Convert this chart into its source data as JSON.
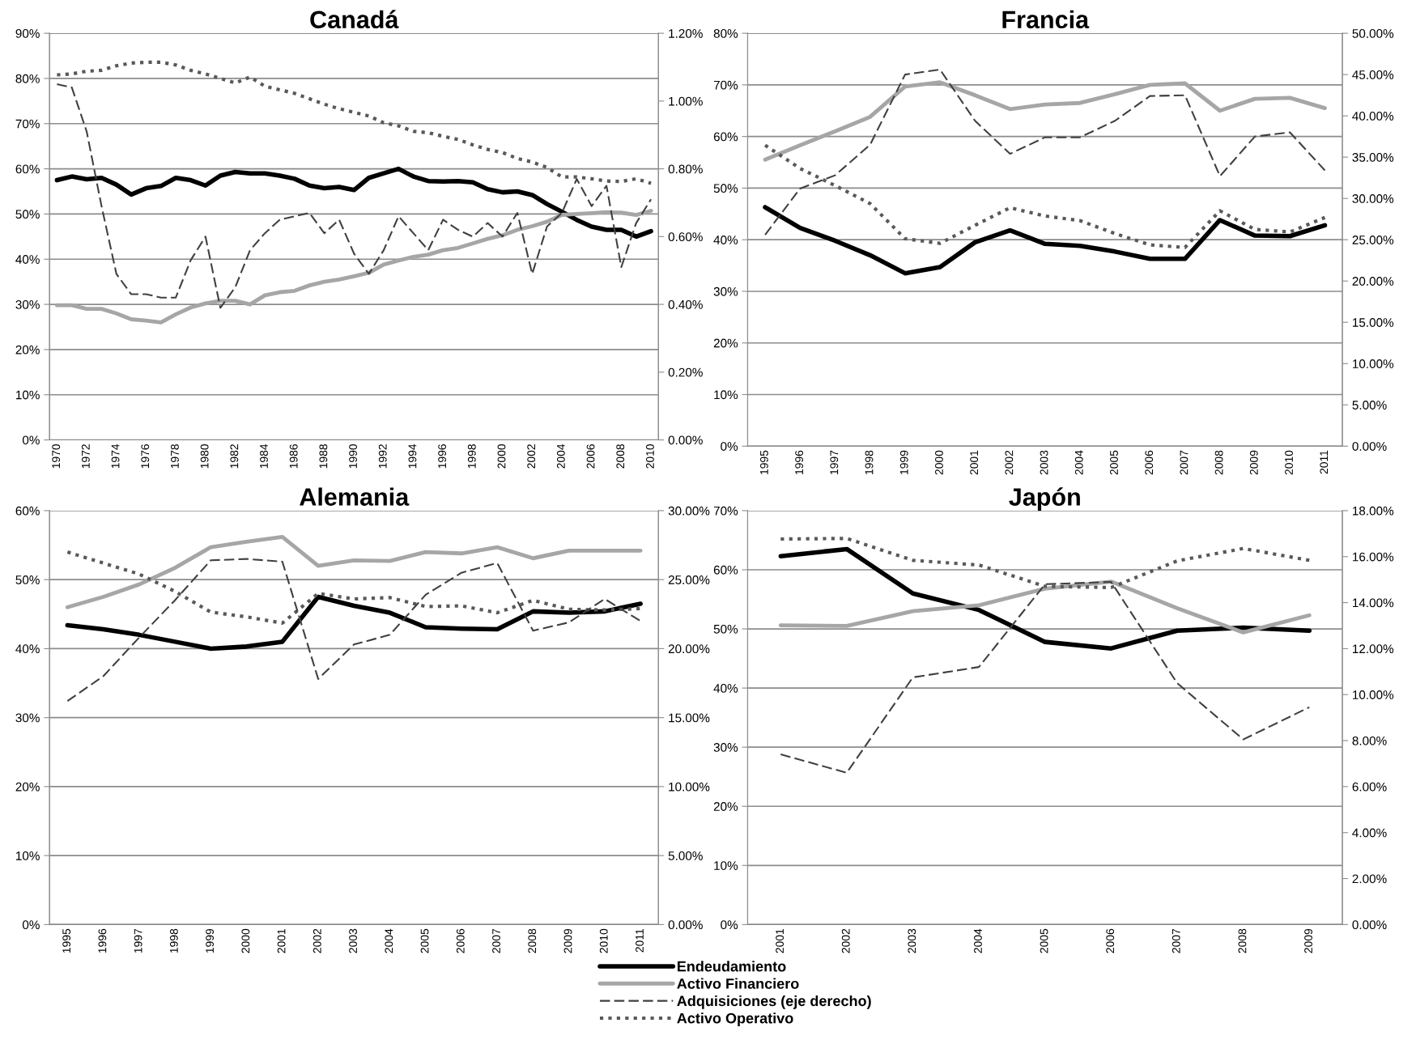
{
  "chart_data": [
    {
      "type": "line",
      "title": "Canadá",
      "categories": [
        "1970",
        null,
        "1972",
        null,
        "1974",
        null,
        "1976",
        null,
        "1978",
        null,
        "1980",
        null,
        "1982",
        null,
        "1984",
        null,
        "1986",
        null,
        "1988",
        null,
        "1990",
        null,
        "1992",
        null,
        "1994",
        null,
        "1996",
        null,
        "1998",
        null,
        "2000",
        null,
        "2002",
        null,
        "2004",
        null,
        "2006",
        null,
        "2008",
        null,
        "2010"
      ],
      "series": [
        {
          "color": "#000000",
          "line_style": "solid",
          "values": [
            57.5,
            58.3,
            57.7,
            58,
            56.5,
            54.3,
            55.7,
            56.2,
            58,
            57.5,
            56.3,
            58.5,
            59.3,
            59,
            59,
            58.5,
            57.8,
            56.3,
            55.7,
            56,
            55.3,
            58,
            59,
            60,
            58.3,
            57.3,
            57.2,
            57.3,
            57,
            55.5,
            54.8,
            55,
            54.2,
            52.2,
            50.5,
            48.7,
            47.2,
            46.5,
            46.5,
            45,
            46.2
          ]
        },
        {
          "color": "#a6a6a6",
          "line_style": "solid",
          "values": [
            29.8,
            29.8,
            29,
            29,
            28,
            26.7,
            26.4,
            26,
            27.8,
            29.3,
            30.2,
            30.8,
            30.8,
            30,
            32,
            32.7,
            33,
            34.2,
            35,
            35.5,
            36.2,
            37,
            38.8,
            39.7,
            40.5,
            41,
            42,
            42.5,
            43.5,
            44.5,
            45.3,
            46.5,
            47.3,
            48.3,
            49.8,
            50,
            50.2,
            50.4,
            50.3,
            49.8,
            50.7
          ]
        },
        {
          "color": "#404040",
          "line_style": "dashed",
          "axis": "y2",
          "values": [
            1.05,
            1.04,
            0.91,
            0.69,
            0.49,
            0.43,
            0.43,
            0.42,
            0.42,
            0.53,
            0.6,
            0.39,
            0.45,
            0.56,
            0.61,
            0.65,
            0.66,
            0.67,
            0.61,
            0.65,
            0.55,
            0.49,
            0.56,
            0.66,
            0.61,
            0.56,
            0.65,
            0.62,
            0.6,
            0.64,
            0.6,
            0.67,
            0.49,
            0.63,
            0.67,
            0.77,
            0.69,
            0.75,
            0.51,
            0.64,
            0.71
          ]
        },
        {
          "color": "#595959",
          "line_style": "dotted",
          "values": [
            80.8,
            81,
            81.6,
            81.8,
            82.8,
            83.4,
            83.6,
            83.6,
            83,
            81.8,
            81,
            80,
            79,
            80.3,
            78.3,
            77.5,
            76.7,
            75.5,
            74.3,
            73.3,
            72.5,
            71.7,
            70.2,
            69.5,
            68.3,
            68,
            67.2,
            66.5,
            65.3,
            64.3,
            63.6,
            62.3,
            61.5,
            60.3,
            58.2,
            58.2,
            57.8,
            57.3,
            57.2,
            57.8,
            56.8
          ]
        }
      ],
      "ylim": [
        0,
        90
      ],
      "yticks": [
        {
          "value": 0,
          "label": "0%"
        },
        {
          "value": 10,
          "label": "10%"
        },
        {
          "value": 20,
          "label": "20%"
        },
        {
          "value": 30,
          "label": "30%"
        },
        {
          "value": 40,
          "label": "40%"
        },
        {
          "value": 50,
          "label": "50%"
        },
        {
          "value": 60,
          "label": "60%"
        },
        {
          "value": 70,
          "label": "70%"
        },
        {
          "value": 80,
          "label": "80%"
        },
        {
          "value": 90,
          "label": "90%"
        }
      ],
      "y2lim": [
        0,
        1.2
      ],
      "y2ticks": [
        {
          "value": 0,
          "label": "0.00%"
        },
        {
          "value": 0.2,
          "label": "0.20%"
        },
        {
          "value": 0.4,
          "label": "0.40%"
        },
        {
          "value": 0.6,
          "label": "0.60%"
        },
        {
          "value": 0.8,
          "label": "0.80%"
        },
        {
          "value": 1.0,
          "label": "1.00%"
        },
        {
          "value": 1.2,
          "label": "1.20%"
        }
      ],
      "grid": "y"
    },
    {
      "type": "line",
      "title": "Francia",
      "categories": [
        "1995",
        "1996",
        "1997",
        "1998",
        "1999",
        "2000",
        "2001",
        "2002",
        "2003",
        "2004",
        "2005",
        "2006",
        "2007",
        "2008",
        "2009",
        "2010",
        "2011"
      ],
      "series": [
        {
          "color": "#000000",
          "line_style": "solid",
          "values": [
            46.3,
            42.3,
            39.8,
            37,
            33.5,
            34.7,
            39.5,
            41.8,
            39.2,
            38.8,
            37.7,
            36.3,
            36.3,
            43.8,
            40.8,
            40.7,
            42.8
          ]
        },
        {
          "color": "#a6a6a6",
          "line_style": "solid",
          "values": [
            55.5,
            58.3,
            61,
            63.8,
            69.7,
            70.5,
            68,
            65.3,
            66.2,
            66.5,
            68.2,
            70,
            70.3,
            65,
            67.3,
            67.5,
            65.5
          ]
        },
        {
          "color": "#404040",
          "line_style": "dashed",
          "axis": "y2",
          "values": [
            25.6,
            31.2,
            32.8,
            36.5,
            45,
            45.6,
            39.4,
            35.4,
            37.4,
            37.4,
            39.4,
            42.4,
            42.5,
            32.7,
            37.5,
            38,
            33.4
          ]
        },
        {
          "color": "#595959",
          "line_style": "dotted",
          "values": [
            58.3,
            53.8,
            50.5,
            47,
            40.2,
            39.3,
            42.8,
            46.2,
            44.6,
            43.7,
            41.2,
            39,
            38.5,
            45.6,
            42,
            41.5,
            44.3
          ]
        }
      ],
      "ylim": [
        0,
        80
      ],
      "yticks": [
        {
          "value": 0,
          "label": "0%"
        },
        {
          "value": 10,
          "label": "10%"
        },
        {
          "value": 20,
          "label": "20%"
        },
        {
          "value": 30,
          "label": "30%"
        },
        {
          "value": 40,
          "label": "40%"
        },
        {
          "value": 50,
          "label": "50%"
        },
        {
          "value": 60,
          "label": "60%"
        },
        {
          "value": 70,
          "label": "70%"
        },
        {
          "value": 80,
          "label": "80%"
        }
      ],
      "y2lim": [
        0,
        50
      ],
      "y2ticks": [
        {
          "value": 0,
          "label": "0.00%"
        },
        {
          "value": 5,
          "label": "5.00%"
        },
        {
          "value": 10,
          "label": "10.00%"
        },
        {
          "value": 15,
          "label": "15.00%"
        },
        {
          "value": 20,
          "label": "20.00%"
        },
        {
          "value": 25,
          "label": "25.00%"
        },
        {
          "value": 30,
          "label": "30.00%"
        },
        {
          "value": 35,
          "label": "35.00%"
        },
        {
          "value": 40,
          "label": "40.00%"
        },
        {
          "value": 45,
          "label": "45.00%"
        },
        {
          "value": 50,
          "label": "50.00%"
        }
      ],
      "grid": "y"
    },
    {
      "type": "line",
      "title": "Alemania",
      "categories": [
        "1995",
        "1996",
        "1997",
        "1998",
        "1999",
        "2000",
        "2001",
        "2002",
        "2003",
        "2004",
        "2005",
        "2006",
        "2007",
        "2008",
        "2009",
        "2010",
        "2011"
      ],
      "series": [
        {
          "color": "#000000",
          "line_style": "solid",
          "values": [
            43.4,
            42.8,
            42,
            41,
            40,
            40.3,
            41,
            47.5,
            46.2,
            45.2,
            43.1,
            42.9,
            42.8,
            45.4,
            45.2,
            45.4,
            46.5
          ]
        },
        {
          "color": "#a6a6a6",
          "line_style": "solid",
          "values": [
            46,
            47.5,
            49.3,
            51.7,
            54.7,
            55.5,
            56.2,
            52,
            52.8,
            52.7,
            54,
            53.8,
            54.7,
            53.1,
            54.2,
            54.2,
            54.2
          ]
        },
        {
          "color": "#404040",
          "line_style": "dashed",
          "axis": "y2",
          "values": [
            16.2,
            18,
            20.8,
            23.5,
            26.4,
            26.5,
            26.3,
            17.8,
            20.3,
            21,
            23.9,
            25.5,
            26.2,
            21.3,
            21.9,
            23.6,
            22
          ]
        },
        {
          "color": "#595959",
          "line_style": "dotted",
          "values": [
            54,
            52.4,
            50.8,
            48.3,
            45.3,
            44.6,
            43.7,
            48,
            47.2,
            47.4,
            46.1,
            46.2,
            45.2,
            47,
            45.7,
            45.6,
            45.8
          ]
        }
      ],
      "ylim": [
        0,
        60
      ],
      "yticks": [
        {
          "value": 0,
          "label": "0%"
        },
        {
          "value": 10,
          "label": "10%"
        },
        {
          "value": 20,
          "label": "20%"
        },
        {
          "value": 30,
          "label": "30%"
        },
        {
          "value": 40,
          "label": "40%"
        },
        {
          "value": 50,
          "label": "50%"
        },
        {
          "value": 60,
          "label": "60%"
        }
      ],
      "y2lim": [
        0,
        30
      ],
      "y2ticks": [
        {
          "value": 0,
          "label": "0.00%"
        },
        {
          "value": 5,
          "label": "5.00%"
        },
        {
          "value": 10,
          "label": "10.00%"
        },
        {
          "value": 15,
          "label": "15.00%"
        },
        {
          "value": 20,
          "label": "20.00%"
        },
        {
          "value": 25,
          "label": "25.00%"
        },
        {
          "value": 30,
          "label": "30.00%"
        }
      ],
      "grid": "y"
    },
    {
      "type": "line",
      "title": "Japón",
      "categories": [
        "2001",
        "2002",
        "2003",
        "2004",
        "2005",
        "2006",
        "2007",
        "2008",
        "2009"
      ],
      "series": [
        {
          "name": "Endeudamiento",
          "color": "#000000",
          "line_style": "solid",
          "values": [
            62.3,
            63.5,
            56,
            53.2,
            47.8,
            46.7,
            49.7,
            50.2,
            49.7
          ]
        },
        {
          "name": "Activo Financiero",
          "color": "#a6a6a6",
          "line_style": "solid",
          "values": [
            50.6,
            50.5,
            53,
            54,
            56.8,
            58,
            53.5,
            49.4,
            52.3
          ]
        },
        {
          "name": "Adquisiciones (eje derecho)",
          "color": "#404040",
          "line_style": "dashed",
          "axis": "y2",
          "values": [
            7.4,
            6.6,
            10.75,
            11.2,
            14.8,
            14.9,
            10.5,
            8.05,
            9.45
          ]
        },
        {
          "name": "Activo Operativo",
          "color": "#595959",
          "line_style": "dotted",
          "values": [
            65.2,
            65.3,
            61.6,
            60.8,
            57.2,
            57,
            61.5,
            63.6,
            61.6
          ]
        }
      ],
      "ylim": [
        0,
        70
      ],
      "yticks": [
        {
          "value": 0,
          "label": "0%"
        },
        {
          "value": 10,
          "label": "10%"
        },
        {
          "value": 20,
          "label": "20%"
        },
        {
          "value": 30,
          "label": "30%"
        },
        {
          "value": 40,
          "label": "40%"
        },
        {
          "value": 50,
          "label": "50%"
        },
        {
          "value": 60,
          "label": "60%"
        },
        {
          "value": 70,
          "label": "70%"
        }
      ],
      "y2lim": [
        0,
        18
      ],
      "y2ticks": [
        {
          "value": 0,
          "label": "0.00%"
        },
        {
          "value": 2,
          "label": "2.00%"
        },
        {
          "value": 4,
          "label": "4.00%"
        },
        {
          "value": 6,
          "label": "6.00%"
        },
        {
          "value": 8,
          "label": "8.00%"
        },
        {
          "value": 10,
          "label": "10.00%"
        },
        {
          "value": 12,
          "label": "12.00%"
        },
        {
          "value": 14,
          "label": "14.00%"
        },
        {
          "value": 16,
          "label": "16.00%"
        },
        {
          "value": 18,
          "label": "18.00%"
        }
      ],
      "grid": "y",
      "legend": "bottom"
    }
  ]
}
